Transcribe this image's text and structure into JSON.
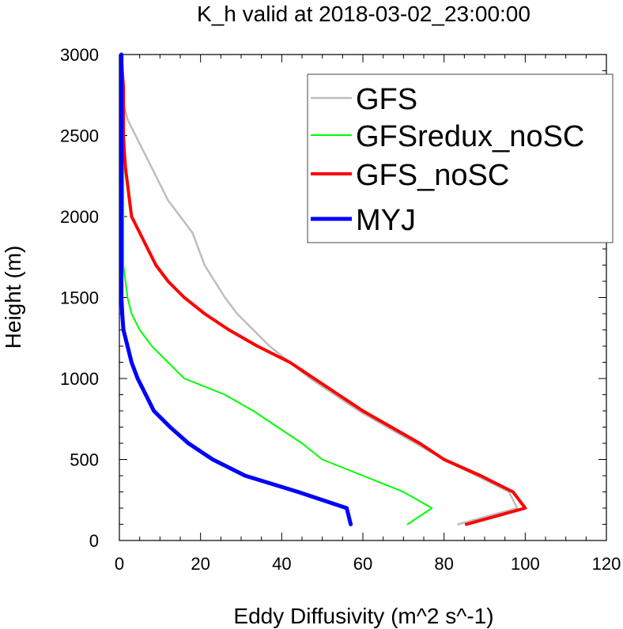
{
  "chart_data": {
    "type": "line",
    "title": "K_h valid at 2018-03-02_23:00:00",
    "xlabel": "Eddy Diffusivity (m^2 s^-1)",
    "ylabel": "Height (m)",
    "xlim": [
      0,
      120
    ],
    "ylim": [
      0,
      3000
    ],
    "xticks": [
      0,
      20,
      40,
      60,
      80,
      100,
      120
    ],
    "yticks": [
      0,
      500,
      1000,
      1500,
      2000,
      2500,
      3000
    ],
    "xtick_labels": [
      "0",
      "20",
      "40",
      "60",
      "80",
      "100",
      "120"
    ],
    "ytick_labels": [
      "0",
      "500",
      "1000",
      "1500",
      "2000",
      "2500",
      "3000"
    ],
    "grid": false,
    "legend_position": "top-right",
    "series": [
      {
        "name": "GFS",
        "color": "#bdbdbd",
        "points": [
          [
            83.5,
            100
          ],
          [
            98,
            200
          ],
          [
            96,
            300
          ],
          [
            88,
            400
          ],
          [
            80,
            500
          ],
          [
            73,
            600
          ],
          [
            66,
            700
          ],
          [
            59,
            800
          ],
          [
            53,
            900
          ],
          [
            47,
            1000
          ],
          [
            42,
            1100
          ],
          [
            37,
            1200
          ],
          [
            33,
            1300
          ],
          [
            29,
            1400
          ],
          [
            26,
            1500
          ],
          [
            23.5,
            1600
          ],
          [
            21,
            1700
          ],
          [
            19.5,
            1800
          ],
          [
            18,
            1900
          ],
          [
            15,
            2000
          ],
          [
            12,
            2100
          ],
          [
            10,
            2200
          ],
          [
            8,
            2300
          ],
          [
            6,
            2400
          ],
          [
            4,
            2500
          ],
          [
            2,
            2600
          ],
          [
            1,
            2700
          ],
          [
            0.5,
            2800
          ],
          [
            0.5,
            2900
          ],
          [
            0.3,
            3000
          ]
        ]
      },
      {
        "name": "GFSredux_noSC",
        "color": "#00ff00",
        "points": [
          [
            71,
            100
          ],
          [
            77,
            200
          ],
          [
            70,
            300
          ],
          [
            60,
            400
          ],
          [
            50,
            500
          ],
          [
            45,
            600
          ],
          [
            39,
            700
          ],
          [
            33,
            800
          ],
          [
            26,
            900
          ],
          [
            16,
            1000
          ],
          [
            12,
            1100
          ],
          [
            8,
            1200
          ],
          [
            5,
            1300
          ],
          [
            3,
            1400
          ],
          [
            2,
            1500
          ],
          [
            1.5,
            1600
          ],
          [
            1,
            1700
          ],
          [
            1,
            1800
          ],
          [
            1,
            1900
          ],
          [
            1,
            2000
          ],
          [
            1,
            2100
          ],
          [
            1,
            2200
          ],
          [
            1,
            2300
          ],
          [
            1,
            2400
          ],
          [
            1,
            2500
          ],
          [
            0.8,
            2600
          ],
          [
            0.5,
            2700
          ],
          [
            0.5,
            2800
          ],
          [
            0.4,
            2900
          ],
          [
            0.3,
            3000
          ]
        ]
      },
      {
        "name": "GFS_noSC",
        "color": "#ff0000",
        "points": [
          [
            85.5,
            100
          ],
          [
            100,
            200
          ],
          [
            97,
            300
          ],
          [
            89,
            400
          ],
          [
            80,
            500
          ],
          [
            74,
            600
          ],
          [
            67,
            700
          ],
          [
            60,
            800
          ],
          [
            54,
            900
          ],
          [
            48,
            1000
          ],
          [
            42,
            1100
          ],
          [
            34,
            1200
          ],
          [
            27,
            1300
          ],
          [
            21,
            1400
          ],
          [
            16,
            1500
          ],
          [
            12,
            1600
          ],
          [
            9,
            1700
          ],
          [
            7,
            1800
          ],
          [
            5,
            1900
          ],
          [
            3,
            2000
          ],
          [
            2.5,
            2100
          ],
          [
            2,
            2200
          ],
          [
            1.5,
            2300
          ],
          [
            1.2,
            2400
          ],
          [
            1,
            2500
          ],
          [
            1,
            2600
          ],
          [
            1,
            2700
          ],
          [
            1,
            2800
          ],
          [
            0.7,
            2900
          ],
          [
            0.5,
            3000
          ]
        ]
      },
      {
        "name": "MYJ",
        "color": "#0000ff",
        "points": [
          [
            57,
            100
          ],
          [
            56,
            200
          ],
          [
            44,
            300
          ],
          [
            31,
            400
          ],
          [
            23,
            500
          ],
          [
            17,
            600
          ],
          [
            12.5,
            700
          ],
          [
            8.5,
            800
          ],
          [
            6.5,
            900
          ],
          [
            4.5,
            1000
          ],
          [
            3,
            1100
          ],
          [
            2,
            1200
          ],
          [
            1,
            1300
          ],
          [
            0.7,
            1400
          ],
          [
            0.5,
            1500
          ],
          [
            0.5,
            1600
          ],
          [
            0.5,
            1700
          ],
          [
            0.5,
            1800
          ],
          [
            0.5,
            1900
          ],
          [
            0.5,
            2000
          ],
          [
            0.5,
            2100
          ],
          [
            0.5,
            2200
          ],
          [
            0.5,
            2300
          ],
          [
            0.5,
            2400
          ],
          [
            0.5,
            2500
          ],
          [
            0.5,
            2600
          ],
          [
            0.5,
            2700
          ],
          [
            0.5,
            2800
          ],
          [
            0.5,
            2900
          ],
          [
            0.5,
            3000
          ]
        ]
      }
    ]
  }
}
